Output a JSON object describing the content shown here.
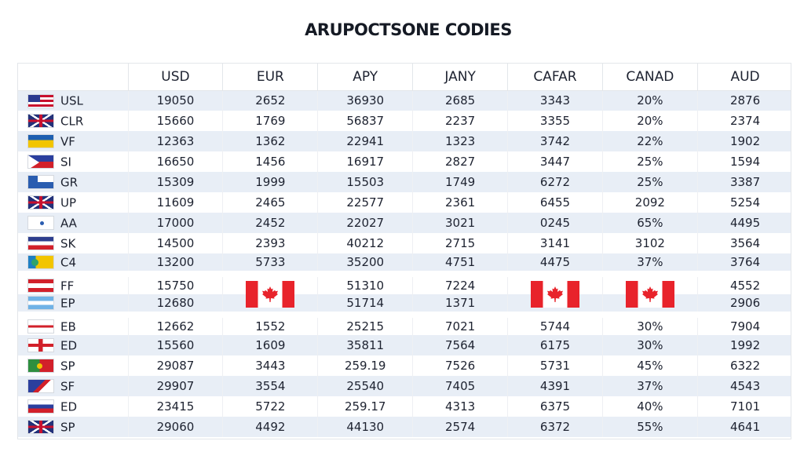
{
  "title": "ARUPOCTSONE CODIES",
  "columns": [
    "",
    "USD",
    "EUR",
    "APY",
    "JANY",
    "CAFAR",
    "CANAD",
    "AUD"
  ],
  "rows": [
    {
      "code": "USL",
      "flag": "us-flag-icon",
      "values": [
        "19050",
        "2652",
        "36930",
        "2685",
        "3343",
        "20%",
        "2876"
      ]
    },
    {
      "code": "CLR",
      "flag": "uk-flag-icon",
      "values": [
        "15660",
        "1769",
        "56837",
        "2237",
        "3355",
        "20%",
        "2374"
      ]
    },
    {
      "code": "VF",
      "flag": "brazil-flag-icon",
      "values": [
        "12363",
        "1362",
        "22941",
        "1323",
        "3742",
        "22%",
        "1902"
      ],
      "overlap": true
    },
    {
      "code": "SI",
      "flag": "philippines-flag-icon",
      "values": [
        "16650",
        "1456",
        "16917",
        "2827",
        "3447",
        "25%",
        "1594"
      ]
    },
    {
      "code": "GR",
      "flag": "greece-flag-icon",
      "values": [
        "15309",
        "1999",
        "15503",
        "1749",
        "6272",
        "25%",
        "3387"
      ]
    },
    {
      "code": "UP",
      "flag": "uk-flag-icon",
      "values": [
        "11609",
        "2465",
        "22577",
        "2361",
        "6455",
        "2092",
        "5254"
      ]
    },
    {
      "code": "AA",
      "flag": "white-flag-icon",
      "values": [
        "17000",
        "2452",
        "22027",
        "3021",
        "0245",
        "65%",
        "4495"
      ]
    },
    {
      "code": "SK",
      "flag": "tricolor-flag-icon",
      "values": [
        "14500",
        "2393",
        "40212",
        "2715",
        "3141",
        "3102",
        "3564"
      ]
    },
    {
      "code": "C4",
      "flag": "blue-yellow-flag-icon",
      "values": [
        "13200",
        "5733",
        "35200",
        "4751",
        "4475",
        "37%",
        "3764"
      ]
    },
    {
      "code": "FF",
      "flag": "red-white-flag-icon",
      "values": [
        "15750",
        "",
        "51310",
        "7224",
        "",
        "",
        "4552"
      ],
      "gap": true
    },
    {
      "code": "EP",
      "flag": "light-blue-flag-icon",
      "values": [
        "12680",
        "",
        "51714",
        "1371",
        "",
        "",
        "2906"
      ]
    },
    {
      "code": "EB",
      "flag": "red-stripe-flag-icon",
      "values": [
        "12662",
        "1552",
        "25215",
        "7021",
        "5744",
        "30%",
        "7904"
      ],
      "gap": true
    },
    {
      "code": "ED",
      "flag": "red-cross-flag-icon",
      "values": [
        "15560",
        "1609",
        "35811",
        "7564",
        "6175",
        "30%",
        "1992"
      ]
    },
    {
      "code": "SP",
      "flag": "green-red-flag-icon",
      "values": [
        "29087",
        "3443",
        "259.19",
        "7526",
        "5731",
        "45%",
        "6322"
      ]
    },
    {
      "code": "SF",
      "flag": "diagonal-flag-icon",
      "values": [
        "29907",
        "3554",
        "25540",
        "7405",
        "4391",
        "37%",
        "4543"
      ]
    },
    {
      "code": "ED",
      "flag": "tricolor-flag-icon",
      "values": [
        "23415",
        "5722",
        "259.17",
        "4313",
        "6375",
        "40%",
        "7101"
      ]
    },
    {
      "code": "SP",
      "flag": "uk-flag-icon",
      "values": [
        "29060",
        "4492",
        "44130",
        "2574",
        "6372",
        "55%",
        "4641"
      ]
    }
  ],
  "canada_flags": [
    {
      "name": "canada-flag-icon-eur",
      "column": 2
    },
    {
      "name": "canada-flag-icon-cafar",
      "column": 5
    },
    {
      "name": "canada-flag-icon-canad",
      "column": 6
    }
  ]
}
